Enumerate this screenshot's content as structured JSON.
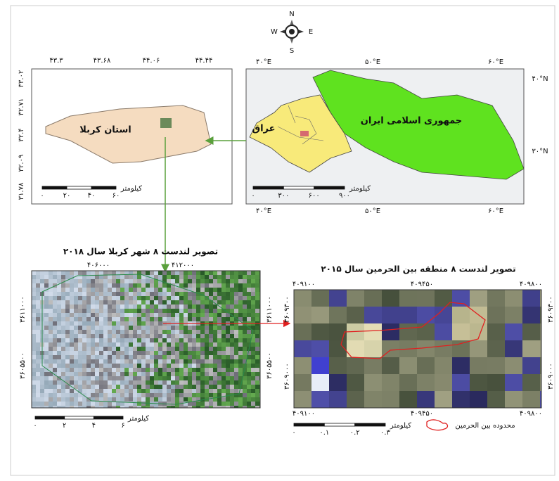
{
  "compass": {
    "n": "N",
    "e": "E",
    "s": "S",
    "w": "W"
  },
  "karbala_map": {
    "top_ticks": [
      "۴۳.۳",
      "۴۳.۶۸",
      "۴۴.۰۶",
      "۴۴.۴۴"
    ],
    "left_ticks": [
      "۳۳.۰۲",
      "۳۲.۷۱",
      "۳۲.۴",
      "۳۲.۰۹",
      "۳۱.۷۸"
    ],
    "label": "استان کربلا",
    "scale": {
      "unit": "کیلومتر",
      "ticks": [
        "۰",
        "۲۰",
        "۴۰",
        "۶۰"
      ]
    }
  },
  "iraq_map": {
    "top_ticks": [
      "۴۰°E",
      "۵۰°E",
      "۶۰°E"
    ],
    "right_ticks": [
      "۴۰°N",
      "۳۰°N"
    ],
    "bottom_ticks": [
      "۴۰°E",
      "۵۰°E",
      "۶۰°E"
    ],
    "labels": {
      "iran": "جمهوری اسلامی ایران",
      "iraq": "عراق"
    },
    "scale": {
      "unit": "کیلومتر",
      "ticks": [
        "۰",
        "۳۰۰",
        "۶۰۰",
        "۹۰۰"
      ]
    }
  },
  "city_image": {
    "title": "تصویر لندست ۸ شهر کربلا سال ۲۰۱۸",
    "top_ticks": [
      "۴۰۶۰۰۰",
      "۴۱۲۰۰۰"
    ],
    "left_ticks": [
      "۳۶۱۱۰۰۰",
      "۳۶۰۵۵۰۰"
    ],
    "right_ticks": [
      "۳۶۱۱۰۰۰",
      "۳۶۰۵۵۰۰"
    ],
    "scale": {
      "unit": "کیلومتر",
      "ticks": [
        "۰",
        "۲",
        "۴",
        "۶"
      ]
    }
  },
  "shrine_image": {
    "title": "تصویر لندست ۸ منطقه بین الحرمین سال ۲۰۱۵",
    "top_ticks": [
      "۴۰۹۱۰۰",
      "۴۰۹۴۵۰",
      "۴۰۹۸۰۰"
    ],
    "bottom_ticks": [
      "۴۰۹۱۰۰",
      "۴۰۹۴۵۰",
      "۴۰۹۸۰۰"
    ],
    "left_ticks": [
      "۳۶۰۹۳۰۰",
      "۳۶۰۹۰۰۰"
    ],
    "right_ticks": [
      "۳۶۰۹۳۰۰",
      "۳۶۰۹۰۰۰"
    ],
    "scale": {
      "unit": "کیلومتر",
      "ticks": [
        "۰",
        "۰.۱",
        "۰.۲",
        "۰.۳"
      ]
    },
    "legend": "محدوده بین الحرمین"
  }
}
